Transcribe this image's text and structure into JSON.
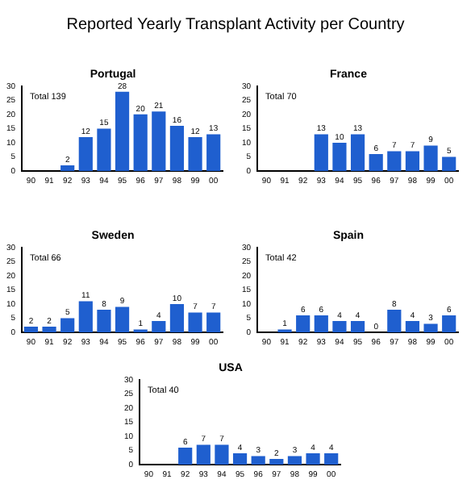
{
  "chart_data": [
    {
      "type": "bar",
      "title": "Reported Yearly Transplant Activity per Country",
      "subtitle": "Portugal",
      "categories": [
        "90",
        "91",
        "92",
        "93",
        "94",
        "95",
        "96",
        "97",
        "98",
        "99",
        "00"
      ],
      "values": [
        0,
        0,
        2,
        12,
        15,
        28,
        20,
        21,
        16,
        12,
        13
      ],
      "value_labels": [
        null,
        null,
        "2",
        "12",
        "15",
        "28",
        "20",
        "21",
        "16",
        "12",
        "13"
      ],
      "color": "#1f5fcf",
      "ylim": [
        0,
        30
      ],
      "yticks": [
        0,
        5,
        10,
        15,
        20,
        25,
        30
      ],
      "grid": false,
      "annotations": [
        "Total 139"
      ]
    },
    {
      "type": "bar",
      "title": "France",
      "categories": [
        "90",
        "91",
        "92",
        "93",
        "94",
        "95",
        "96",
        "97",
        "98",
        "99",
        "00"
      ],
      "values": [
        0,
        0,
        0,
        13,
        10,
        13,
        6,
        7,
        7,
        9,
        5
      ],
      "value_labels": [
        null,
        null,
        null,
        "13",
        "10",
        "13",
        "6",
        "7",
        "7",
        "9",
        "5"
      ],
      "color": "#1f5fcf",
      "ylim": [
        0,
        30
      ],
      "yticks": [
        0,
        5,
        10,
        15,
        20,
        25,
        30
      ],
      "grid": false,
      "annotations": [
        "Total 70"
      ]
    },
    {
      "type": "bar",
      "title": "Sweden",
      "categories": [
        "90",
        "91",
        "92",
        "93",
        "94",
        "95",
        "96",
        "97",
        "98",
        "99",
        "00"
      ],
      "values": [
        2,
        2,
        5,
        11,
        8,
        9,
        1,
        4,
        10,
        7,
        7
      ],
      "value_labels": [
        "2",
        "2",
        "5",
        "11",
        "8",
        "9",
        "1",
        "4",
        "10",
        "7",
        "7"
      ],
      "color": "#1f5fcf",
      "ylim": [
        0,
        30
      ],
      "yticks": [
        0,
        5,
        10,
        15,
        20,
        25,
        30
      ],
      "grid": false,
      "annotations": [
        "Total 66"
      ]
    },
    {
      "type": "bar",
      "title": "Spain",
      "categories": [
        "90",
        "91",
        "92",
        "93",
        "94",
        "95",
        "96",
        "97",
        "98",
        "99",
        "00"
      ],
      "values": [
        0,
        1,
        6,
        6,
        4,
        4,
        0,
        8,
        4,
        3,
        6
      ],
      "value_labels": [
        null,
        "1",
        "6",
        "6",
        "4",
        "4",
        "0",
        "8",
        "4",
        "3",
        "6"
      ],
      "color": "#1f5fcf",
      "ylim": [
        0,
        30
      ],
      "yticks": [
        0,
        5,
        10,
        15,
        20,
        25,
        30
      ],
      "grid": false,
      "annotations": [
        "Total 42"
      ]
    },
    {
      "type": "bar",
      "title": "USA",
      "categories": [
        "90",
        "91",
        "92",
        "93",
        "94",
        "95",
        "96",
        "97",
        "98",
        "99",
        "00"
      ],
      "values": [
        0,
        0,
        6,
        7,
        7,
        4,
        3,
        2,
        3,
        4,
        4
      ],
      "value_labels": [
        null,
        null,
        "6",
        "7",
        "7",
        "4",
        "3",
        "2",
        "3",
        "4",
        "4"
      ],
      "color": "#1f5fcf",
      "ylim": [
        0,
        30
      ],
      "yticks": [
        0,
        5,
        10,
        15,
        20,
        25,
        30
      ],
      "grid": false,
      "annotations": [
        "Total 40"
      ]
    }
  ]
}
